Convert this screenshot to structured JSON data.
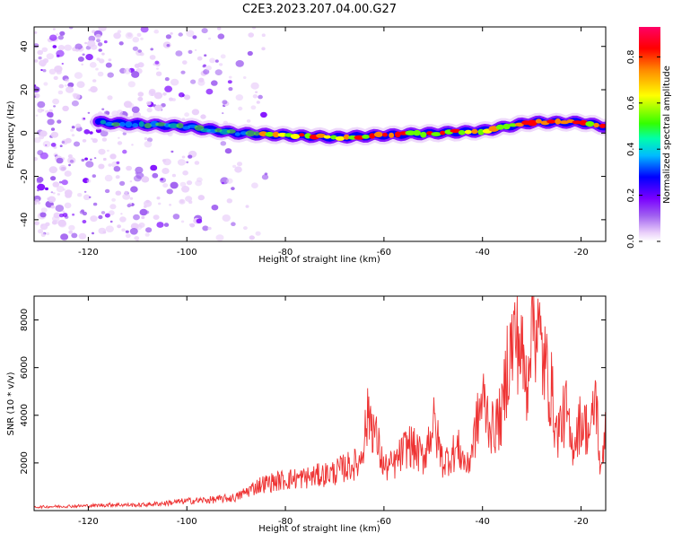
{
  "title": "C2E3.2023.207.04.00.G27",
  "colors": {
    "snr_line": "#ee3333",
    "axis": "#000000",
    "colormap": [
      "#ffffff",
      "#ead0fa",
      "#a060f0",
      "#7a00ff",
      "#0000ff",
      "#00bbff",
      "#00ff88",
      "#66ff00",
      "#ffff00",
      "#ff8800",
      "#ff0000",
      "#ff0066"
    ]
  },
  "chart_data": [
    {
      "type": "heatmap",
      "xlabel": "Height of straight line (km)",
      "ylabel": "Frequency (Hz)",
      "xlim": [
        -131,
        -15
      ],
      "ylim": [
        -50,
        49
      ],
      "x_ticks": [
        "-120",
        "-100",
        "-80",
        "-60",
        "-40",
        "-20"
      ],
      "x_tick_values": [
        -120,
        -100,
        -80,
        -60,
        -40,
        -20
      ],
      "y_ticks": [
        "-40",
        "-20",
        "0",
        "20",
        "40"
      ],
      "y_tick_values": [
        -40,
        -20,
        0,
        20,
        40
      ],
      "grid": false,
      "colorbar": {
        "label": "Normalized spectral amplitude",
        "range": [
          0,
          0.93
        ],
        "ticks": [
          "0.0",
          "0.2",
          "0.4",
          "0.6",
          "0.8"
        ],
        "tick_values": [
          0.0,
          0.2,
          0.4,
          0.6,
          0.8
        ]
      },
      "ridge": {
        "x": [
          -118,
          -110,
          -100,
          -90,
          -80,
          -70,
          -60,
          -50,
          -40,
          -30,
          -20,
          -15
        ],
        "frequency": [
          5,
          4,
          3,
          0,
          -1,
          -2,
          -1,
          0,
          1,
          5,
          5,
          3
        ]
      }
    },
    {
      "type": "line",
      "xlabel": "Height of straight line (km)",
      "ylabel": "SNR (10 * v/v)",
      "xlim": [
        -131,
        -15
      ],
      "ylim": [
        0,
        9000
      ],
      "x_ticks": [
        "-120",
        "-100",
        "-80",
        "-60",
        "-40",
        "-20"
      ],
      "x_tick_values": [
        -120,
        -100,
        -80,
        -60,
        -40,
        -20
      ],
      "y_ticks": [
        "2000",
        "4000",
        "6000",
        "8000"
      ],
      "y_tick_values": [
        2000,
        4000,
        6000,
        8000
      ],
      "grid": false,
      "series": [
        {
          "x": [
            -131,
            -125,
            -120,
            -115,
            -110,
            -105,
            -100,
            -95,
            -90,
            -87,
            -85,
            -80,
            -75,
            -70,
            -68,
            -65,
            -63,
            -60,
            -58,
            -55,
            -52,
            -50,
            -48,
            -45,
            -43,
            -40,
            -38,
            -36,
            -35,
            -33,
            -31,
            -30,
            -28,
            -26,
            -25,
            -23,
            -22,
            -20,
            -18,
            -17,
            -16,
            -15
          ],
          "values": [
            150,
            180,
            200,
            250,
            230,
            300,
            400,
            450,
            550,
            900,
            1100,
            1300,
            1400,
            1600,
            1800,
            2000,
            4200,
            1800,
            1900,
            2800,
            2200,
            3700,
            2000,
            2600,
            1800,
            4700,
            3400,
            4000,
            6200,
            7600,
            5200,
            8900,
            6600,
            5000,
            3200,
            4200,
            2600,
            3800,
            3200,
            5000,
            1300,
            4000
          ]
        }
      ]
    }
  ]
}
